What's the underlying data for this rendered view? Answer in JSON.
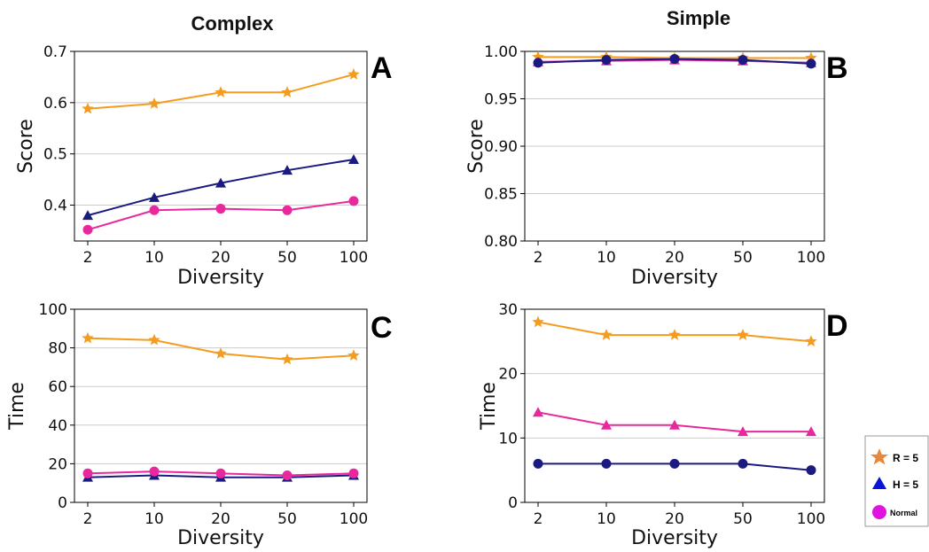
{
  "columns": [
    "Complex",
    "Simple"
  ],
  "legend": [
    {
      "label": "R = 5",
      "marker": "star",
      "color": "#e8873a"
    },
    {
      "label": "H = 5",
      "marker": "triangle",
      "color": "#0a14d8"
    },
    {
      "label": "Normal",
      "marker": "circle",
      "color": "#e014e0"
    }
  ],
  "series_colors": {
    "orange": "#f39c1f",
    "navy": "#1a1a80",
    "pink": "#e8289c"
  },
  "chart_data": [
    {
      "panel": "A",
      "type": "line",
      "xlabel": "Diversity",
      "ylabel": "Score",
      "categories": [
        "2",
        "10",
        "20",
        "50",
        "100"
      ],
      "ylim": [
        0.33,
        0.7
      ],
      "yticks": [
        "0.4",
        "0.5",
        "0.6",
        "0.7"
      ],
      "ytick_values": [
        0.4,
        0.5,
        0.6,
        0.7
      ],
      "grid": "horizontal",
      "series": [
        {
          "color": "orange",
          "marker": "star",
          "values": [
            0.588,
            0.598,
            0.62,
            0.62,
            0.655
          ]
        },
        {
          "color": "navy",
          "marker": "triangle",
          "values": [
            0.38,
            0.415,
            0.443,
            0.468,
            0.489
          ]
        },
        {
          "color": "pink",
          "marker": "circle",
          "values": [
            0.352,
            0.39,
            0.393,
            0.39,
            0.408
          ]
        }
      ]
    },
    {
      "panel": "B",
      "type": "line",
      "xlabel": "Diversity",
      "ylabel": "Score",
      "categories": [
        "2",
        "10",
        "20",
        "50",
        "100"
      ],
      "ylim": [
        0.8,
        1.0
      ],
      "yticks": [
        "0.80",
        "0.85",
        "0.90",
        "0.95",
        "1.00"
      ],
      "ytick_values": [
        0.8,
        0.85,
        0.9,
        0.95,
        1.0
      ],
      "grid": "horizontal",
      "series": [
        {
          "color": "orange",
          "marker": "star",
          "values": [
            0.994,
            0.994,
            0.993,
            0.993,
            0.993
          ]
        },
        {
          "color": "pink",
          "marker": "triangle",
          "values": [
            0.989,
            0.99,
            0.991,
            0.99,
            0.988
          ]
        },
        {
          "color": "navy",
          "marker": "circle",
          "values": [
            0.988,
            0.991,
            0.992,
            0.991,
            0.987
          ]
        }
      ]
    },
    {
      "panel": "C",
      "type": "line",
      "xlabel": "Diversity",
      "ylabel": "Time",
      "categories": [
        "2",
        "10",
        "20",
        "50",
        "100"
      ],
      "ylim": [
        0,
        100
      ],
      "yticks": [
        "0",
        "20",
        "40",
        "60",
        "80",
        "100"
      ],
      "ytick_values": [
        0,
        20,
        40,
        60,
        80,
        100
      ],
      "grid": "horizontal",
      "series": [
        {
          "color": "orange",
          "marker": "star",
          "values": [
            85,
            84,
            77,
            74,
            76
          ]
        },
        {
          "color": "navy",
          "marker": "triangle",
          "values": [
            13,
            14,
            13,
            13,
            14
          ]
        },
        {
          "color": "pink",
          "marker": "circle",
          "values": [
            15,
            16,
            15,
            14,
            15
          ]
        }
      ]
    },
    {
      "panel": "D",
      "type": "line",
      "xlabel": "Diversity",
      "ylabel": "Time",
      "categories": [
        "2",
        "10",
        "20",
        "50",
        "100"
      ],
      "ylim": [
        0,
        30
      ],
      "yticks": [
        "0",
        "10",
        "20",
        "30"
      ],
      "ytick_values": [
        0,
        10,
        20,
        30
      ],
      "grid": "horizontal",
      "series": [
        {
          "color": "orange",
          "marker": "star",
          "values": [
            28,
            26,
            26,
            26,
            25
          ]
        },
        {
          "color": "pink",
          "marker": "triangle",
          "values": [
            14,
            12,
            12,
            11,
            11
          ]
        },
        {
          "color": "navy",
          "marker": "circle",
          "values": [
            6,
            6,
            6,
            6,
            5
          ]
        }
      ]
    }
  ]
}
